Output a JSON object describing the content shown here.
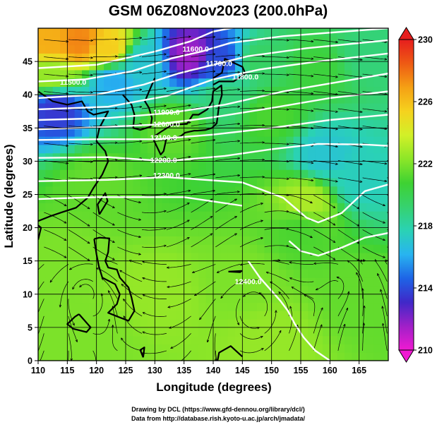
{
  "title": "GSM 06Z08Nov2023 (200.0hPa)",
  "credits": [
    "Drawing by DCL (https://www.gfd-dennou.org/library/dcl/)",
    "Data from http://database.rish.kyoto-u.ac.jp/arch/jmadata/"
  ],
  "colors": {
    "background": "#ffffff",
    "contour": "#ffffff",
    "streamline": "#000000",
    "coastline": "#000000",
    "grid": "#000000"
  },
  "chart_data": {
    "type": "heatmap",
    "title": "GSM 06Z08Nov2023 (200.0hPa)",
    "xlabel": "Longitude (degrees)",
    "ylabel": "Latitude  (degrees)",
    "xlim": [
      110,
      170
    ],
    "ylim": [
      0,
      50
    ],
    "xticks": [
      "110",
      "115",
      "120",
      "125",
      "130",
      "135",
      "140",
      "145",
      "150",
      "155",
      "160",
      "165"
    ],
    "yticks": [
      "0",
      "5",
      "10",
      "15",
      "20",
      "25",
      "30",
      "35",
      "40",
      "45"
    ],
    "grid": true,
    "colorbar": {
      "placement": "right",
      "range": [
        210,
        230
      ],
      "ticks": [
        "210",
        "214",
        "218",
        "222",
        "226",
        "230"
      ],
      "colors": [
        "#f01ad2",
        "#a020c8",
        "#4028c8",
        "#1e64e6",
        "#28b4f0",
        "#2ad2b4",
        "#36d26e",
        "#3ed232",
        "#8ce628",
        "#d2f028",
        "#f5d21e",
        "#f5a014",
        "#ee5a14",
        "#e61e1e"
      ]
    },
    "field_samples": [
      {
        "lon": 112,
        "lat": 48,
        "value": 226.5
      },
      {
        "lon": 117,
        "lat": 48,
        "value": 227.5
      },
      {
        "lon": 122,
        "lat": 47,
        "value": 225.5
      },
      {
        "lon": 112,
        "lat": 43,
        "value": 222.5
      },
      {
        "lon": 113,
        "lat": 38,
        "value": 213.5
      },
      {
        "lon": 123,
        "lat": 42,
        "value": 216.0
      },
      {
        "lon": 128,
        "lat": 45,
        "value": 217.0
      },
      {
        "lon": 136,
        "lat": 46,
        "value": 211.5
      },
      {
        "lon": 141,
        "lat": 45,
        "value": 214.0
      },
      {
        "lon": 142,
        "lat": 40,
        "value": 219.0
      },
      {
        "lon": 148,
        "lat": 45,
        "value": 219.5
      },
      {
        "lon": 158,
        "lat": 44,
        "value": 220.5
      },
      {
        "lon": 166,
        "lat": 46,
        "value": 219.0
      },
      {
        "lon": 133,
        "lat": 35,
        "value": 221.5
      },
      {
        "lon": 150,
        "lat": 37,
        "value": 221.0
      },
      {
        "lon": 159,
        "lat": 31,
        "value": 217.0
      },
      {
        "lon": 165,
        "lat": 27,
        "value": 217.5
      },
      {
        "lon": 156,
        "lat": 24,
        "value": 223.0
      },
      {
        "lon": 155,
        "lat": 20,
        "value": 221.0
      },
      {
        "lon": 120,
        "lat": 27,
        "value": 221.5
      },
      {
        "lon": 115,
        "lat": 15,
        "value": 222.0
      },
      {
        "lon": 130,
        "lat": 10,
        "value": 222.5
      },
      {
        "lon": 145,
        "lat": 12,
        "value": 222.0
      },
      {
        "lon": 165,
        "lat": 10,
        "value": 221.5
      },
      {
        "lon": 150,
        "lat": 3,
        "value": 222.5
      },
      {
        "lon": 120,
        "lat": 3,
        "value": 222.0
      }
    ],
    "contour_labels": [
      {
        "text": "11600.0",
        "lon": 137,
        "lat": 46.5
      },
      {
        "text": "11700.0",
        "lon": 141,
        "lat": 44.3
      },
      {
        "text": "11800.0",
        "lon": 145.5,
        "lat": 42.3
      },
      {
        "text": "11500.0",
        "lon": 116,
        "lat": 41.5
      },
      {
        "text": "11900.0",
        "lon": 132,
        "lat": 37
      },
      {
        "text": "12000.0",
        "lon": 132,
        "lat": 35.2
      },
      {
        "text": "12100.0",
        "lon": 131.5,
        "lat": 33.2
      },
      {
        "text": "12200.0",
        "lon": 131.5,
        "lat": 29.8
      },
      {
        "text": "12300.0",
        "lon": 132,
        "lat": 27.5
      },
      {
        "text": "12400.0",
        "lon": 146,
        "lat": 11.5
      }
    ]
  }
}
